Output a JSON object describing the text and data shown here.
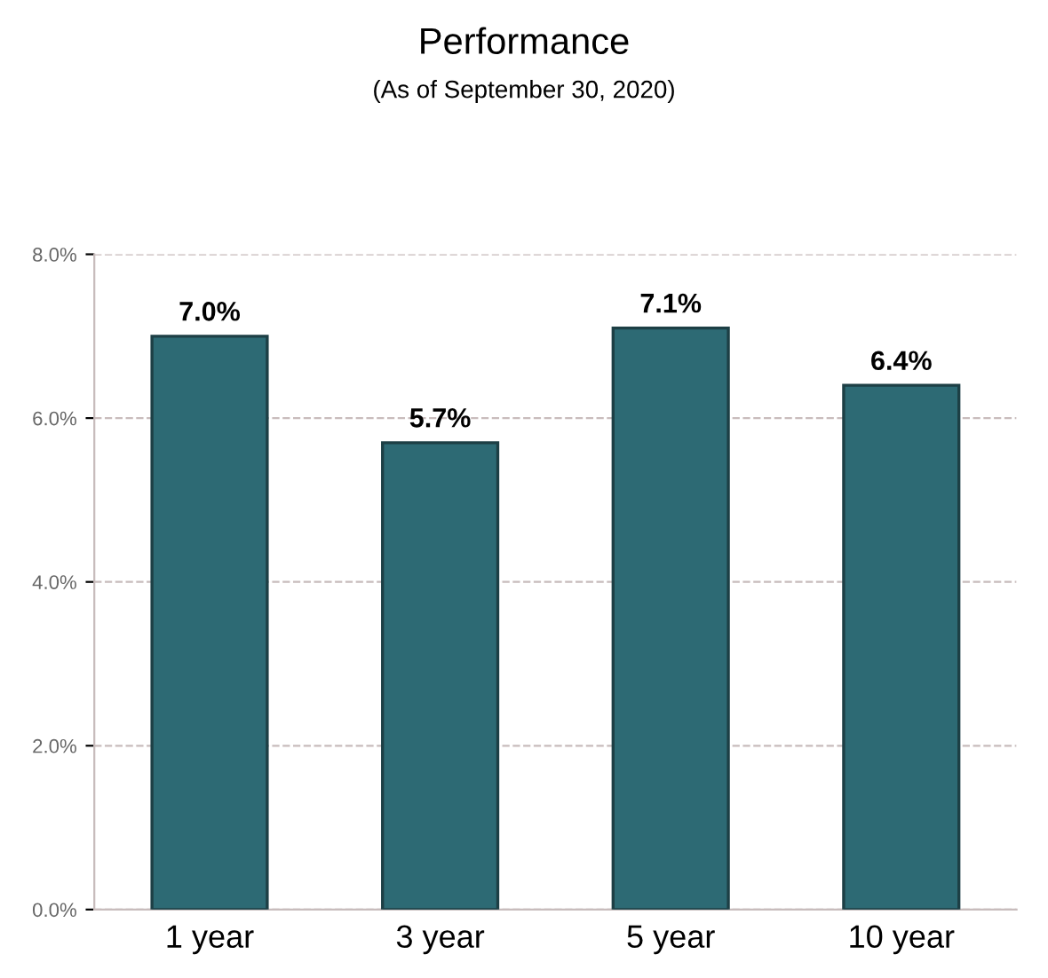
{
  "chart_data": {
    "type": "bar",
    "title": "Performance",
    "subtitle": "(As of September 30, 2020)",
    "categories": [
      "1 year",
      "3 year",
      "5 year",
      "10 year"
    ],
    "values": [
      7.0,
      5.7,
      7.1,
      6.4
    ],
    "value_labels": [
      "7.0%",
      "5.7%",
      "7.1%",
      "6.4%"
    ],
    "color": "#2d6a74",
    "ylim": [
      0,
      8
    ],
    "yticks": [
      {
        "value": 0,
        "label": "0.0%"
      },
      {
        "value": 2,
        "label": "2.0%"
      },
      {
        "value": 4,
        "label": "4.0%"
      },
      {
        "value": 6,
        "label": "6.0%"
      },
      {
        "value": 8,
        "label": "8.0%"
      }
    ],
    "grid": "y"
  }
}
